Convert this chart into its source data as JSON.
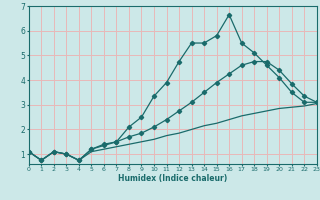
{
  "title": "",
  "xlabel": "Humidex (Indice chaleur)",
  "ylabel": "",
  "background_color": "#cce8e8",
  "grid_color": "#e8b8b8",
  "line_color": "#1a6b6b",
  "xlim": [
    0,
    23
  ],
  "ylim": [
    0.6,
    7.0
  ],
  "x": [
    0,
    1,
    2,
    3,
    4,
    5,
    6,
    7,
    8,
    9,
    10,
    11,
    12,
    13,
    14,
    15,
    16,
    17,
    18,
    19,
    20,
    21,
    22,
    23
  ],
  "y_max": [
    1.1,
    0.75,
    1.1,
    1.0,
    0.75,
    1.2,
    1.4,
    1.5,
    2.1,
    2.5,
    3.35,
    3.9,
    4.75,
    5.5,
    5.5,
    5.8,
    6.65,
    5.5,
    5.1,
    4.6,
    4.1,
    3.5,
    3.1,
    3.1
  ],
  "y_mean": [
    1.1,
    0.75,
    1.1,
    1.0,
    0.75,
    1.2,
    1.35,
    1.5,
    1.7,
    1.85,
    2.1,
    2.4,
    2.75,
    3.1,
    3.5,
    3.9,
    4.25,
    4.6,
    4.75,
    4.75,
    4.4,
    3.85,
    3.35,
    3.1
  ],
  "y_min": [
    1.1,
    0.75,
    1.1,
    1.0,
    0.75,
    1.1,
    1.2,
    1.3,
    1.4,
    1.5,
    1.6,
    1.75,
    1.85,
    2.0,
    2.15,
    2.25,
    2.4,
    2.55,
    2.65,
    2.75,
    2.85,
    2.9,
    2.95,
    3.05
  ],
  "yticks": [
    1,
    2,
    3,
    4,
    5,
    6,
    7
  ],
  "xticks": [
    0,
    1,
    2,
    3,
    4,
    5,
    6,
    7,
    8,
    9,
    10,
    11,
    12,
    13,
    14,
    15,
    16,
    17,
    18,
    19,
    20,
    21,
    22,
    23
  ]
}
